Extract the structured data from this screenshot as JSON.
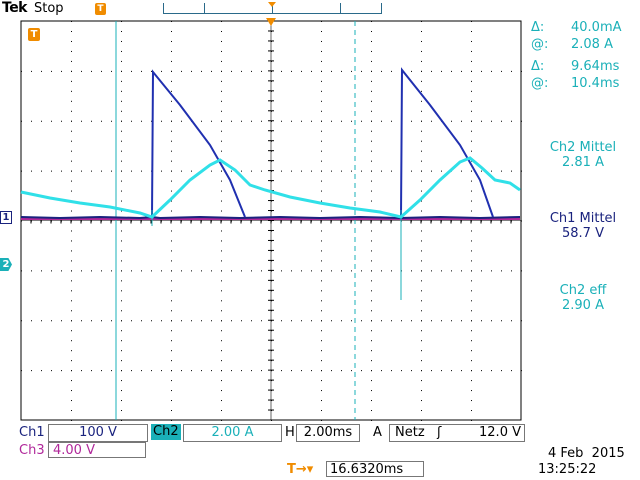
{
  "header": {
    "brand": "Tek",
    "status": "Stop",
    "trigger_marker": "T"
  },
  "markers": {
    "ch1": "1",
    "ch2": "2",
    "trigger": "T"
  },
  "cursor_readouts": {
    "delta_y_symbol": "Δ:",
    "delta_y_value": "40.0mA",
    "at_y_symbol": "@:",
    "at_y_value": "2.08 A",
    "delta_x_symbol": "Δ:",
    "delta_x_value": "9.64ms",
    "at_x_symbol": "@:",
    "at_x_value": "10.4ms"
  },
  "measurements": [
    {
      "label": "Ch2 Mittel",
      "value": "2.81 A",
      "color": "#1ab0b8"
    },
    {
      "label": "Ch1 Mittel",
      "value": "58.7 V",
      "color": "#1a237e"
    },
    {
      "label": "Ch2 eff",
      "value": "2.90 A",
      "color": "#1ab0b8"
    }
  ],
  "settings": {
    "ch1_label": "Ch1",
    "ch1_scale": "100 V",
    "ch2_label": "Ch2",
    "ch2_scale": "2.00 A",
    "timebase_label": "H",
    "timebase": "2.00ms",
    "trigger_mode": "A",
    "trigger_source": "Netz",
    "trigger_slope": "ʃ",
    "trigger_level": "12.0 V",
    "ch3_label": "Ch3",
    "ch3_scale": "4.00 V",
    "trigger_position_icon": "T→▾",
    "trigger_position": "16.6320ms"
  },
  "datetime": {
    "date": "4 Feb  2015",
    "time": "13:25:22"
  },
  "colors": {
    "ch1": "#1a237e",
    "ch2": "#1ab0b8",
    "ch3": "#b0289a",
    "trigger": "#f08c00",
    "graticule": "#000000"
  }
}
